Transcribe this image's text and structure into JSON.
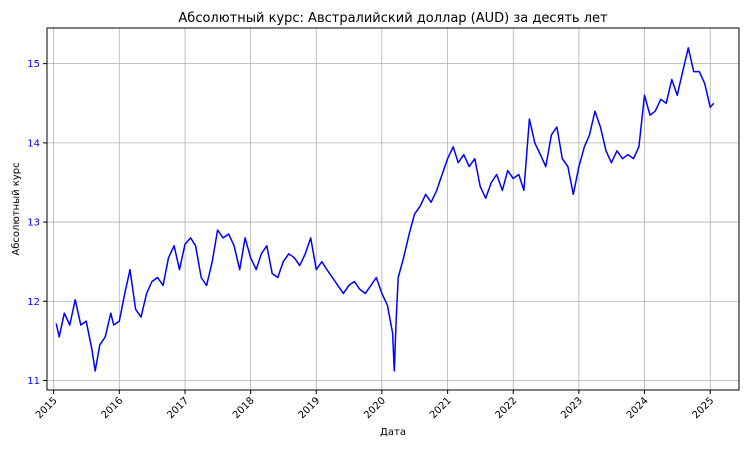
{
  "chart_data": {
    "type": "line",
    "title": "Абсолютный курс: Австралийский доллар (AUD) за десять лет",
    "xlabel": "Дата",
    "ylabel": "Абсолютный курс",
    "xlim": [
      "2014-11-25",
      "2025-06-10"
    ],
    "ylim": [
      10.88,
      15.45
    ],
    "xticks": [
      "2015",
      "2016",
      "2017",
      "2018",
      "2019",
      "2020",
      "2021",
      "2022",
      "2023",
      "2024",
      "2025"
    ],
    "yticks": [
      11,
      12,
      13,
      14,
      15
    ],
    "grid": true,
    "legend": "none",
    "colors": {
      "line": "#0000ff",
      "ylabel": "#0000ff",
      "ytick": "#0000ff",
      "grid": "#b0b0b0"
    },
    "series": [
      {
        "x": [
          "2015-01-15",
          "2015-02-01",
          "2015-03-01",
          "2015-04-01",
          "2015-05-01",
          "2015-06-01",
          "2015-07-01",
          "2015-08-01",
          "2015-08-20",
          "2015-09-15",
          "2015-10-15",
          "2015-11-15",
          "2015-12-01",
          "2016-01-01",
          "2016-02-01",
          "2016-03-01",
          "2016-04-01",
          "2016-05-01",
          "2016-06-01",
          "2016-07-01",
          "2016-08-01",
          "2016-09-01",
          "2016-10-01",
          "2016-11-01",
          "2016-12-01",
          "2017-01-01",
          "2017-02-01",
          "2017-03-01",
          "2017-04-01",
          "2017-05-01",
          "2017-06-01",
          "2017-07-01",
          "2017-08-01",
          "2017-09-01",
          "2017-10-01",
          "2017-11-01",
          "2017-12-01",
          "2018-01-01",
          "2018-02-01",
          "2018-03-01",
          "2018-04-01",
          "2018-05-01",
          "2018-06-01",
          "2018-07-01",
          "2018-08-01",
          "2018-09-01",
          "2018-10-01",
          "2018-11-01",
          "2018-12-01",
          "2019-01-01",
          "2019-02-01",
          "2019-03-01",
          "2019-04-01",
          "2019-05-01",
          "2019-06-01",
          "2019-07-01",
          "2019-08-01",
          "2019-09-01",
          "2019-10-01",
          "2019-11-01",
          "2019-12-01",
          "2020-01-01",
          "2020-02-01",
          "2020-03-01",
          "2020-03-10",
          "2020-03-20",
          "2020-04-01",
          "2020-05-01",
          "2020-06-01",
          "2020-07-01",
          "2020-08-01",
          "2020-09-01",
          "2020-10-01",
          "2020-11-01",
          "2020-12-01",
          "2021-01-01",
          "2021-02-01",
          "2021-03-01",
          "2021-04-01",
          "2021-05-01",
          "2021-06-01",
          "2021-07-01",
          "2021-08-01",
          "2021-09-01",
          "2021-10-01",
          "2021-11-01",
          "2021-12-01",
          "2022-01-01",
          "2022-02-01",
          "2022-03-01",
          "2022-04-01",
          "2022-05-01",
          "2022-06-01",
          "2022-07-01",
          "2022-08-01",
          "2022-09-01",
          "2022-10-01",
          "2022-11-01",
          "2022-12-01",
          "2023-01-01",
          "2023-02-01",
          "2023-03-01",
          "2023-04-01",
          "2023-05-01",
          "2023-06-01",
          "2023-07-01",
          "2023-08-01",
          "2023-09-01",
          "2023-10-01",
          "2023-11-01",
          "2023-12-01",
          "2024-01-01",
          "2024-02-01",
          "2024-03-01",
          "2024-04-01",
          "2024-05-01",
          "2024-06-01",
          "2024-07-01",
          "2024-08-01",
          "2024-09-01",
          "2024-10-01",
          "2024-11-01",
          "2024-12-01",
          "2025-01-01",
          "2025-01-20"
        ],
        "values": [
          11.72,
          11.55,
          11.85,
          11.7,
          12.02,
          11.7,
          11.75,
          11.4,
          11.12,
          11.45,
          11.55,
          11.85,
          11.7,
          11.75,
          12.1,
          12.4,
          11.9,
          11.8,
          12.1,
          12.25,
          12.3,
          12.2,
          12.55,
          12.7,
          12.4,
          12.72,
          12.8,
          12.7,
          12.3,
          12.2,
          12.5,
          12.9,
          12.8,
          12.85,
          12.7,
          12.4,
          12.8,
          12.55,
          12.4,
          12.6,
          12.7,
          12.35,
          12.3,
          12.5,
          12.6,
          12.55,
          12.45,
          12.6,
          12.8,
          12.4,
          12.5,
          12.4,
          12.3,
          12.2,
          12.1,
          12.2,
          12.25,
          12.15,
          12.1,
          12.2,
          12.3,
          12.1,
          11.95,
          11.6,
          11.12,
          11.75,
          12.3,
          12.55,
          12.85,
          13.1,
          13.2,
          13.35,
          13.25,
          13.4,
          13.6,
          13.8,
          13.95,
          13.75,
          13.85,
          13.7,
          13.8,
          13.45,
          13.3,
          13.5,
          13.6,
          13.4,
          13.65,
          13.55,
          13.6,
          13.4,
          14.3,
          14.0,
          13.85,
          13.7,
          14.1,
          14.2,
          13.8,
          13.7,
          13.35,
          13.7,
          13.95,
          14.1,
          14.4,
          14.2,
          13.9,
          13.75,
          13.9,
          13.8,
          13.85,
          13.8,
          13.95,
          14.6,
          14.35,
          14.4,
          14.55,
          14.5,
          14.8,
          14.6,
          14.9,
          15.2,
          14.9,
          14.9,
          14.75,
          14.45,
          14.5
        ]
      }
    ]
  }
}
